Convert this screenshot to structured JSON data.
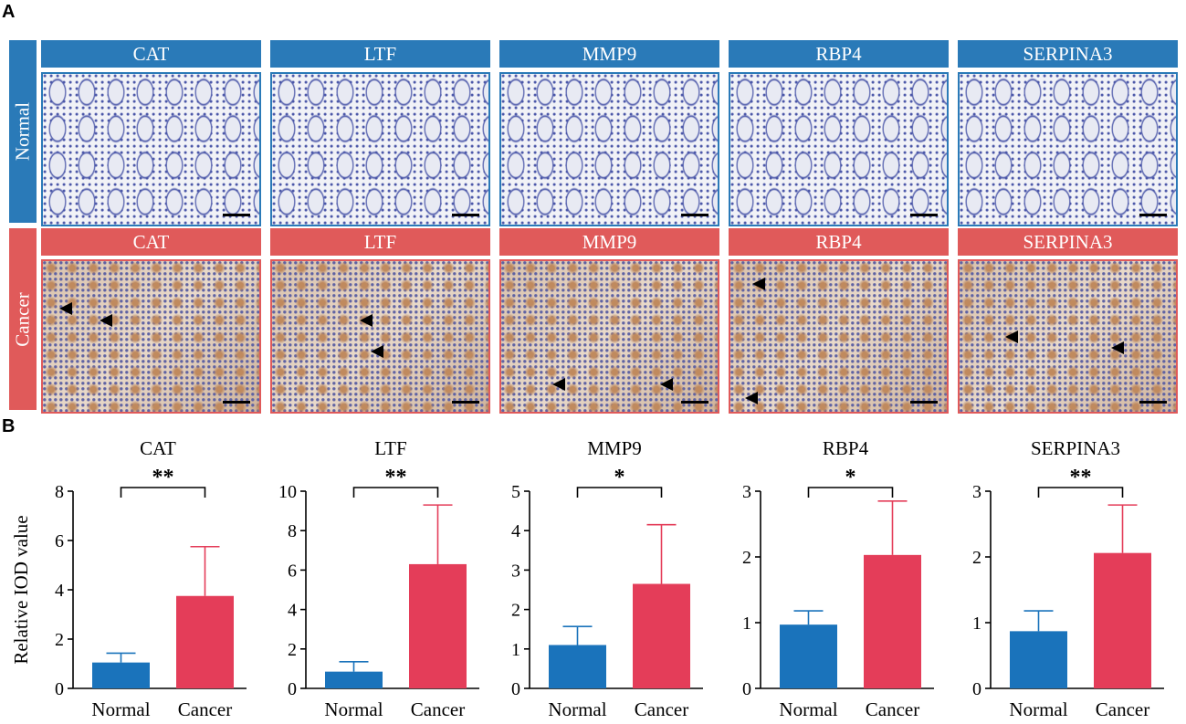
{
  "panel_letters": {
    "a": "A",
    "b": "B"
  },
  "histology": {
    "genes": [
      "CAT",
      "LTF",
      "MMP9",
      "RBP4",
      "SERPINA3"
    ],
    "rows": [
      {
        "label": "Normal",
        "color": "#2a7ab8"
      },
      {
        "label": "Cancer",
        "color": "#e05a5a"
      }
    ]
  },
  "chart_data": [
    {
      "type": "bar",
      "title": "CAT",
      "ylabel": "Relative IOD value",
      "categories": [
        "Normal",
        "Cancer"
      ],
      "values": [
        1.05,
        3.75
      ],
      "errors": [
        0.38,
        2.0
      ],
      "ylim": [
        0,
        8
      ],
      "yticks": [
        "0",
        "2",
        "4",
        "6",
        "8"
      ],
      "significance": "**",
      "colors": [
        "#1a73bb",
        "#e43d59"
      ]
    },
    {
      "type": "bar",
      "title": "LTF",
      "ylabel": "",
      "categories": [
        "Normal",
        "Cancer"
      ],
      "values": [
        0.85,
        6.3
      ],
      "errors": [
        0.5,
        3.0
      ],
      "ylim": [
        0,
        10
      ],
      "yticks": [
        "0",
        "2",
        "4",
        "6",
        "8",
        "10"
      ],
      "significance": "**",
      "colors": [
        "#1a73bb",
        "#e43d59"
      ]
    },
    {
      "type": "bar",
      "title": "MMP9",
      "ylabel": "",
      "categories": [
        "Normal",
        "Cancer"
      ],
      "values": [
        1.1,
        2.65
      ],
      "errors": [
        0.47,
        1.5
      ],
      "ylim": [
        0,
        5
      ],
      "yticks": [
        "0",
        "1",
        "2",
        "3",
        "4",
        "5"
      ],
      "significance": "*",
      "colors": [
        "#1a73bb",
        "#e43d59"
      ]
    },
    {
      "type": "bar",
      "title": "RBP4",
      "ylabel": "",
      "categories": [
        "Normal",
        "Cancer"
      ],
      "values": [
        0.97,
        2.03
      ],
      "errors": [
        0.21,
        0.82
      ],
      "ylim": [
        0,
        3
      ],
      "yticks": [
        "0",
        "1",
        "2",
        "3"
      ],
      "significance": "*",
      "colors": [
        "#1a73bb",
        "#e43d59"
      ]
    },
    {
      "type": "bar",
      "title": "SERPINA3",
      "ylabel": "",
      "categories": [
        "Normal",
        "Cancer"
      ],
      "values": [
        0.87,
        2.06
      ],
      "errors": [
        0.31,
        0.73
      ],
      "ylim": [
        0,
        3
      ],
      "yticks": [
        "0",
        "1",
        "2",
        "3"
      ],
      "significance": "**",
      "colors": [
        "#1a73bb",
        "#e43d59"
      ]
    }
  ]
}
